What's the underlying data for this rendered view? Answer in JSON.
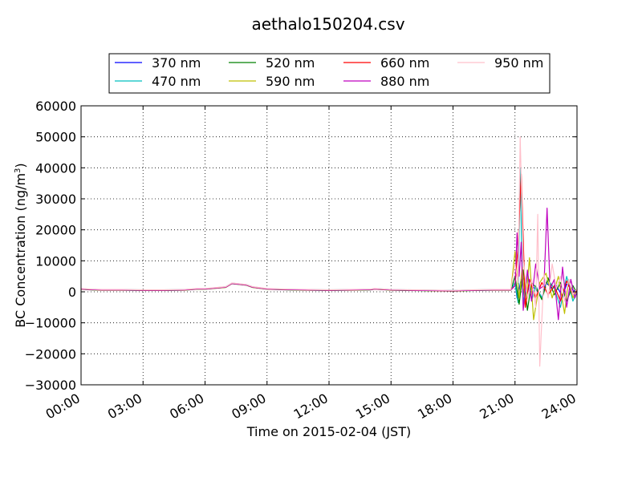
{
  "chart_data": {
    "type": "line",
    "title": "aethalo150204.csv",
    "xlabel": "Time on 2015-02-04 (JST)",
    "ylabel_main": "BC Concentration (ng/m",
    "ylabel_sup": "3",
    "ylabel_close": ")",
    "xlim_hours": [
      0,
      24
    ],
    "ylim": [
      -30000,
      60000
    ],
    "grid": true,
    "grid_style": "dotted",
    "legend_position": "top",
    "x_ticks": [
      {
        "hour": 0,
        "label": "00:00"
      },
      {
        "hour": 3,
        "label": "03:00"
      },
      {
        "hour": 6,
        "label": "06:00"
      },
      {
        "hour": 9,
        "label": "09:00"
      },
      {
        "hour": 12,
        "label": "12:00"
      },
      {
        "hour": 15,
        "label": "15:00"
      },
      {
        "hour": 18,
        "label": "18:00"
      },
      {
        "hour": 21,
        "label": "21:00"
      },
      {
        "hour": 24,
        "label": "24:00"
      }
    ],
    "y_ticks": [
      {
        "value": 60000,
        "label": "60000"
      },
      {
        "value": 50000,
        "label": "50000"
      },
      {
        "value": 40000,
        "label": "40000"
      },
      {
        "value": 30000,
        "label": "30000"
      },
      {
        "value": 20000,
        "label": "20000"
      },
      {
        "value": 10000,
        "label": "10000"
      },
      {
        "value": 0,
        "label": "0"
      },
      {
        "value": -10000,
        "label": "−10000"
      },
      {
        "value": -20000,
        "label": "−20000"
      },
      {
        "value": -30000,
        "label": "−30000"
      }
    ],
    "baseline": {
      "x": [
        0,
        0.5,
        1,
        2,
        3,
        4,
        5,
        5.6,
        6,
        7,
        7.3,
        8,
        8.3,
        9,
        10,
        11,
        12,
        13,
        14,
        14.2,
        14.5,
        15,
        16,
        17,
        18,
        19,
        20,
        20.8
      ],
      "y": [
        900,
        700,
        600,
        600,
        500,
        500,
        600,
        900,
        900,
        1500,
        2700,
        2200,
        1500,
        900,
        700,
        600,
        500,
        600,
        700,
        900,
        800,
        600,
        500,
        400,
        300,
        500,
        600,
        600
      ]
    },
    "series": [
      {
        "name": "370 nm",
        "color": "#0000ff",
        "offset": 50,
        "tail_x": [
          20.8,
          21.0,
          21.1,
          21.3,
          21.5,
          21.7,
          22.0,
          22.3,
          22.5,
          22.8,
          23.0,
          23.3,
          23.5,
          23.8,
          24.0
        ],
        "tail_y": [
          600,
          3000,
          -2000,
          4000,
          -3000,
          2000,
          1000,
          -2000,
          3000,
          1000,
          2000,
          -1500,
          2500,
          500,
          0
        ]
      },
      {
        "name": "470 nm",
        "color": "#00bfbf",
        "offset": 120,
        "tail_x": [
          20.8,
          21.0,
          21.15,
          21.25,
          21.32,
          21.4,
          21.6,
          21.8,
          22.0,
          22.3,
          22.6,
          22.9,
          23.2,
          23.5,
          23.8,
          24.0
        ],
        "tail_y": [
          600,
          3000,
          -3500,
          40000,
          15000,
          -4000,
          6000,
          -3000,
          2000,
          -2000,
          4000,
          1000,
          -5000,
          5000,
          -3000,
          0
        ]
      },
      {
        "name": "520 nm",
        "color": "#008000",
        "offset": -80,
        "tail_x": [
          20.8,
          21.0,
          21.2,
          21.4,
          21.6,
          21.8,
          22.0,
          22.3,
          22.6,
          22.9,
          23.2,
          23.5,
          23.8,
          24.0
        ],
        "tail_y": [
          600,
          5000,
          -4000,
          7000,
          -6000,
          3000,
          1500,
          -2500,
          4500,
          -1000,
          3000,
          -3000,
          2000,
          -500
        ]
      },
      {
        "name": "590 nm",
        "color": "#bfbf00",
        "offset": -40,
        "tail_x": [
          20.8,
          21.0,
          21.2,
          21.35,
          21.5,
          21.7,
          21.9,
          22.2,
          22.5,
          22.8,
          23.1,
          23.4,
          23.6,
          23.8,
          24.0
        ],
        "tail_y": [
          600,
          13000,
          -2000,
          8000,
          -5000,
          11000,
          -9000,
          3000,
          6000,
          -2000,
          5000,
          -7000,
          4000,
          -2000,
          1000
        ]
      },
      {
        "name": "660 nm",
        "color": "#ff0000",
        "offset": 20,
        "tail_x": [
          20.8,
          21.0,
          21.15,
          21.3,
          21.5,
          21.7,
          22.0,
          22.3,
          22.6,
          22.9,
          23.2,
          23.5,
          23.8,
          24.0
        ],
        "tail_y": [
          600,
          2000,
          15000,
          38000,
          -5000,
          4000,
          -2000,
          3000,
          -1000,
          2000,
          -3000,
          3500,
          -1000,
          500
        ]
      },
      {
        "name": "880 nm",
        "color": "#bf00bf",
        "offset": 0,
        "tail_x": [
          20.8,
          21.0,
          21.1,
          21.2,
          21.3,
          21.4,
          21.6,
          21.8,
          22.0,
          22.2,
          22.4,
          22.55,
          22.7,
          22.9,
          23.1,
          23.3,
          23.5,
          23.7,
          23.9,
          24.0
        ],
        "tail_y": [
          600,
          2000,
          19000,
          5000,
          16000,
          -6000,
          7000,
          -3000,
          9000,
          1000,
          2000,
          27000,
          1000,
          4000,
          -9000,
          8000,
          -5000,
          4000,
          -2000,
          0
        ]
      },
      {
        "name": "950 nm",
        "color": "#ffc0cb",
        "offset": 150,
        "tail_x": [
          20.8,
          21.0,
          21.15,
          21.25,
          21.4,
          21.6,
          21.8,
          22.0,
          22.1,
          22.2,
          22.4,
          22.6,
          22.8,
          23.0,
          23.2,
          23.4,
          23.6,
          23.8,
          24.0
        ],
        "tail_y": [
          600,
          9000,
          3000,
          50000,
          10000,
          -2000,
          4000,
          -5000,
          25000,
          -24000,
          6000,
          -2000,
          9000,
          1000,
          5000,
          -3000,
          4000,
          -1000,
          1000
        ]
      }
    ]
  }
}
